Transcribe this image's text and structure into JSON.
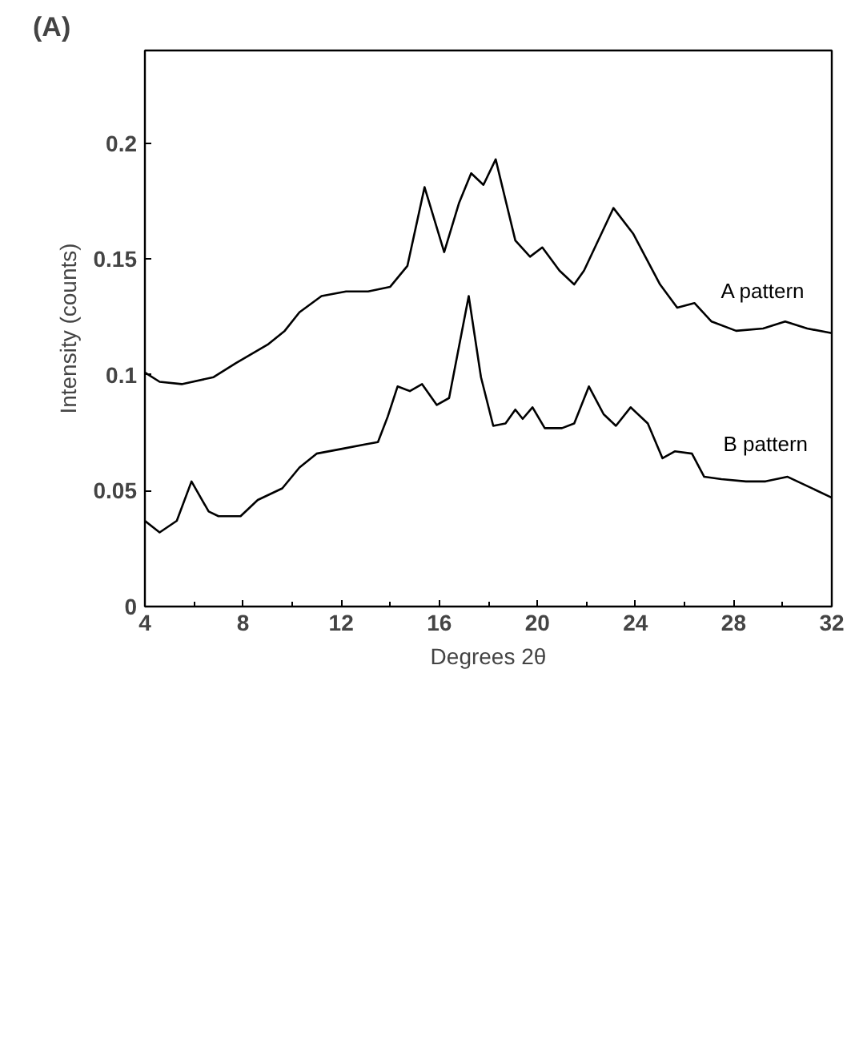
{
  "chart_data": {
    "type": "line",
    "title": "(A)",
    "xlabel": "Degrees 2θ",
    "ylabel": "Intensity (counts)",
    "xlim": [
      4,
      32
    ],
    "ylim": [
      0,
      0.24
    ],
    "xticks": [
      4,
      8,
      12,
      16,
      20,
      24,
      28,
      32
    ],
    "yticks": [
      0,
      0.05,
      0.1,
      0.15,
      0.2
    ],
    "grid": false,
    "legend": false,
    "marker": "none",
    "line_style": "solid",
    "series": [
      {
        "name": "A pattern",
        "color": "#000000",
        "x": [
          4,
          4.6,
          5.5,
          6.8,
          7.7,
          9,
          9.7,
          10.3,
          11.2,
          12.2,
          13.1,
          14,
          14.7,
          15.4,
          16.2,
          16.8,
          17.3,
          17.8,
          18.3,
          19.1,
          19.7,
          20.2,
          20.9,
          21.5,
          21.9,
          23.1,
          23.9,
          25,
          25.7,
          26.4,
          27.1,
          28.1,
          29.2,
          30.1,
          31,
          32
        ],
        "values": [
          0.101,
          0.097,
          0.096,
          0.099,
          0.105,
          0.113,
          0.119,
          0.127,
          0.134,
          0.136,
          0.136,
          0.138,
          0.147,
          0.181,
          0.153,
          0.174,
          0.187,
          0.182,
          0.193,
          0.158,
          0.151,
          0.155,
          0.145,
          0.139,
          0.145,
          0.172,
          0.161,
          0.139,
          0.129,
          0.131,
          0.123,
          0.119,
          0.12,
          0.123,
          0.12,
          0.118
        ]
      },
      {
        "name": "B pattern",
        "color": "#000000",
        "x": [
          4,
          4.6,
          5.3,
          5.9,
          6.6,
          7,
          7.9,
          8.6,
          9.6,
          10.3,
          11,
          12,
          13,
          13.5,
          13.9,
          14.3,
          14.8,
          15.3,
          15.9,
          16.4,
          17.2,
          17.7,
          18.2,
          18.7,
          19.1,
          19.4,
          19.8,
          20.3,
          21,
          21.5,
          22.1,
          22.7,
          23.2,
          23.8,
          24.5,
          25.1,
          25.6,
          26.3,
          26.8,
          27.5,
          28.5,
          29.3,
          30.2,
          31,
          32
        ],
        "values": [
          0.037,
          0.032,
          0.037,
          0.054,
          0.041,
          0.039,
          0.039,
          0.046,
          0.051,
          0.06,
          0.066,
          0.068,
          0.07,
          0.071,
          0.082,
          0.095,
          0.093,
          0.096,
          0.087,
          0.09,
          0.134,
          0.099,
          0.078,
          0.079,
          0.085,
          0.081,
          0.086,
          0.077,
          0.077,
          0.079,
          0.095,
          0.083,
          0.078,
          0.086,
          0.079,
          0.064,
          0.067,
          0.066,
          0.056,
          0.055,
          0.054,
          0.054,
          0.056,
          0.052,
          0.047
        ]
      }
    ]
  }
}
